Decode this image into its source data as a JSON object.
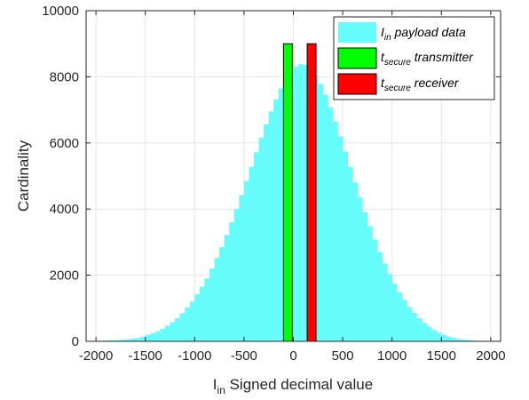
{
  "chart_data": {
    "type": "bar",
    "title": "",
    "xlabel": {
      "main": "I",
      "sub": "in",
      "rest": " Signed decimal value"
    },
    "ylabel": "Cardinality",
    "xlim": [
      -2100,
      2100
    ],
    "ylim": [
      0,
      10000
    ],
    "x_ticks": [
      -2000,
      -1500,
      -1000,
      -500,
      0,
      500,
      1000,
      1500,
      2000
    ],
    "x_tick_labels": [
      "-2000",
      "-1500",
      "-1000",
      "-500",
      "0",
      "500",
      "1000",
      "1500",
      "2000"
    ],
    "y_ticks": [
      0,
      2000,
      4000,
      6000,
      8000,
      10000
    ],
    "y_tick_labels": [
      "0",
      "2000",
      "4000",
      "6000",
      "8000",
      "10000"
    ],
    "grid": true,
    "legend_position": "top-right",
    "histogram": {
      "name": {
        "main": "I",
        "sub": "in",
        "rest": " payload data"
      },
      "color": "#66fcfc",
      "bin_width": 50,
      "bin_centers": [
        -1875,
        -1825,
        -1775,
        -1725,
        -1675,
        -1625,
        -1575,
        -1525,
        -1475,
        -1425,
        -1375,
        -1325,
        -1275,
        -1225,
        -1175,
        -1125,
        -1075,
        -1025,
        -975,
        -925,
        -875,
        -825,
        -775,
        -725,
        -675,
        -625,
        -575,
        -525,
        -475,
        -425,
        -375,
        -325,
        -275,
        -225,
        -175,
        -125,
        -75,
        -25,
        25,
        75,
        125,
        175,
        225,
        275,
        325,
        375,
        425,
        475,
        525,
        575,
        625,
        675,
        725,
        775,
        825,
        875,
        925,
        975,
        1025,
        1075,
        1125,
        1175,
        1225,
        1275,
        1325,
        1375,
        1425,
        1475,
        1525,
        1575,
        1625,
        1675,
        1725,
        1775,
        1825,
        1875
      ],
      "counts": [
        25,
        30,
        40,
        50,
        60,
        80,
        100,
        140,
        190,
        240,
        300,
        380,
        470,
        580,
        700,
        850,
        1020,
        1200,
        1420,
        1650,
        1900,
        2200,
        2520,
        2850,
        3220,
        3600,
        4000,
        4420,
        4850,
        5280,
        5720,
        6150,
        6560,
        6950,
        7320,
        7650,
        7920,
        8150,
        8300,
        8380,
        8360,
        8250,
        8050,
        7780,
        7450,
        7070,
        6640,
        6200,
        5740,
        5270,
        4800,
        4350,
        3900,
        3480,
        3080,
        2700,
        2350,
        2030,
        1740,
        1480,
        1250,
        1040,
        860,
        700,
        560,
        440,
        340,
        260,
        190,
        140,
        100,
        70,
        50,
        35,
        25,
        15
      ]
    },
    "markers": [
      {
        "name": {
          "main": "t",
          "sub": "secure",
          "rest": " transmitter"
        },
        "color": "#00ff00",
        "x_start": -100,
        "x_end": -10,
        "value": 9000
      },
      {
        "name": {
          "main": "t",
          "sub": "secure",
          "rest": " receiver"
        },
        "color": "#ff0000",
        "x_start": 140,
        "x_end": 230,
        "value": 9000
      }
    ]
  }
}
